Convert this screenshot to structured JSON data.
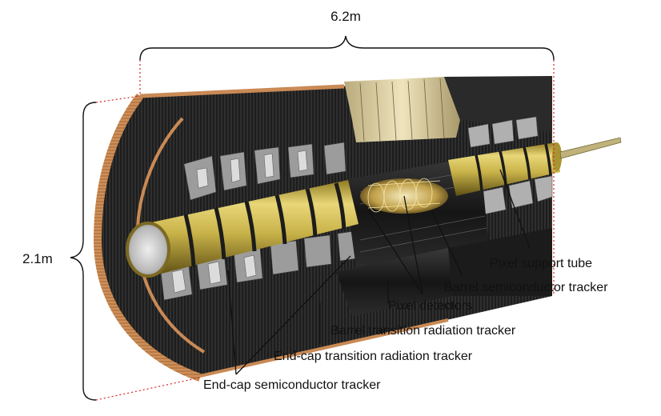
{
  "dimensions": {
    "length": "6.2m",
    "diameter": "2.1m"
  },
  "labels": {
    "pixel_support_tube": "Pixel support tube",
    "barrel_sct": "Barrel semiconductor tracker",
    "pixel_detectors": "Pixel detectors",
    "barrel_trt": "Barrel transition radiation tracker",
    "endcap_trt": "End-cap transition radiation tracker",
    "endcap_sct": "End-cap semiconductor tracker"
  },
  "colors": {
    "tube_gold": "#c9b34a",
    "copper": "#c98a55",
    "dimension_line": "#d9262c",
    "module_grey": "#8a8a8a"
  }
}
